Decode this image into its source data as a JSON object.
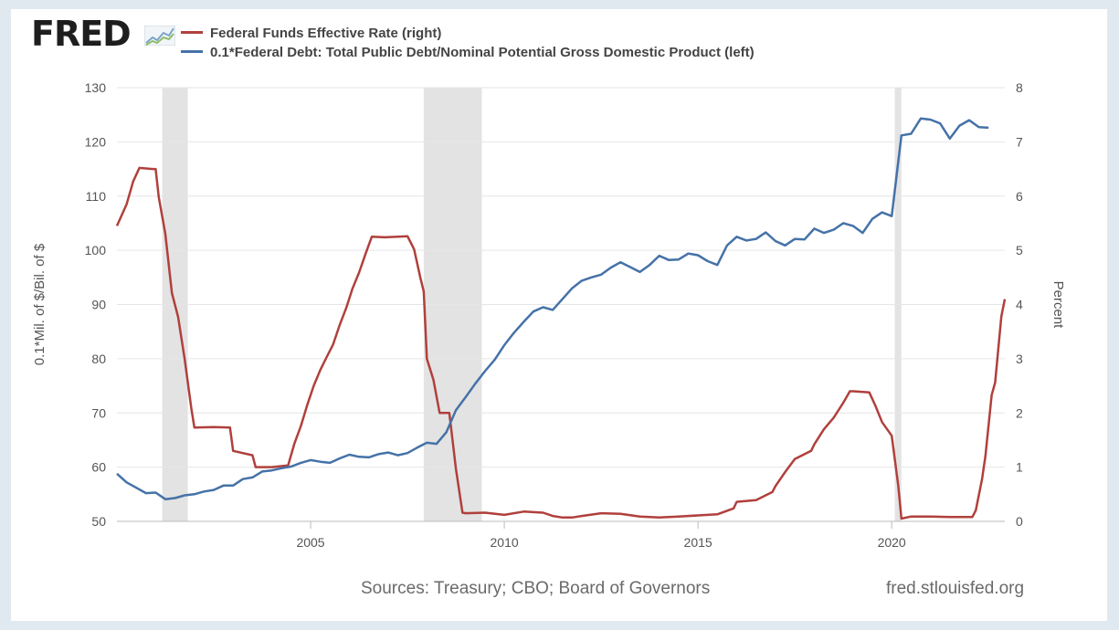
{
  "header": {
    "logo_text": "FRED"
  },
  "footer": {
    "sources": "Sources: Treasury; CBO; Board of Governors",
    "site": "fred.stlouisfed.org"
  },
  "chart_data": {
    "type": "line",
    "left_axis": {
      "label": "0.1*Mil. of $/Bil. of $",
      "ylim": [
        50,
        130
      ],
      "ticks": [
        "50",
        "60",
        "70",
        "80",
        "90",
        "100",
        "110",
        "120",
        "130"
      ]
    },
    "right_axis": {
      "label": "Percent",
      "ylim": [
        0,
        8
      ],
      "ticks": [
        "0",
        "1",
        "2",
        "3",
        "4",
        "5",
        "6",
        "7",
        "8"
      ]
    },
    "x_axis": {
      "range": [
        2000.0,
        2022.92
      ],
      "ticks": [
        {
          "x": 2005,
          "label": "2005"
        },
        {
          "x": 2010,
          "label": "2010"
        },
        {
          "x": 2015,
          "label": "2015"
        },
        {
          "x": 2020,
          "label": "2020"
        }
      ]
    },
    "grid": true,
    "recessions": [
      [
        2001.17,
        2001.83
      ],
      [
        2007.92,
        2009.42
      ],
      [
        2020.08,
        2020.25
      ]
    ],
    "series": [
      {
        "name": "Federal Funds Effective Rate (right)",
        "axis": "right",
        "color": "#b0403c",
        "points": [
          [
            2000.0,
            5.45
          ],
          [
            2000.25,
            5.85
          ],
          [
            2000.42,
            6.27
          ],
          [
            2000.58,
            6.52
          ],
          [
            2000.75,
            6.51
          ],
          [
            2000.92,
            6.5
          ],
          [
            2001.0,
            6.5
          ],
          [
            2001.08,
            5.98
          ],
          [
            2001.25,
            5.3
          ],
          [
            2001.42,
            4.21
          ],
          [
            2001.58,
            3.77
          ],
          [
            2001.75,
            2.99
          ],
          [
            2001.92,
            2.09
          ],
          [
            2002.0,
            1.73
          ],
          [
            2002.5,
            1.74
          ],
          [
            2002.92,
            1.73
          ],
          [
            2003.0,
            1.3
          ],
          [
            2003.5,
            1.22
          ],
          [
            2003.58,
            1.0
          ],
          [
            2004.0,
            1.0
          ],
          [
            2004.42,
            1.03
          ],
          [
            2004.58,
            1.43
          ],
          [
            2004.75,
            1.76
          ],
          [
            2004.92,
            2.16
          ],
          [
            2005.08,
            2.5
          ],
          [
            2005.25,
            2.79
          ],
          [
            2005.42,
            3.04
          ],
          [
            2005.58,
            3.26
          ],
          [
            2005.75,
            3.62
          ],
          [
            2005.92,
            3.94
          ],
          [
            2006.08,
            4.29
          ],
          [
            2006.25,
            4.59
          ],
          [
            2006.42,
            4.94
          ],
          [
            2006.58,
            5.25
          ],
          [
            2006.92,
            5.24
          ],
          [
            2007.25,
            5.25
          ],
          [
            2007.5,
            5.26
          ],
          [
            2007.67,
            5.02
          ],
          [
            2007.83,
            4.5
          ],
          [
            2007.92,
            4.24
          ],
          [
            2008.0,
            3.0
          ],
          [
            2008.17,
            2.61
          ],
          [
            2008.33,
            2.0
          ],
          [
            2008.58,
            2.0
          ],
          [
            2008.75,
            0.97
          ],
          [
            2008.92,
            0.16
          ],
          [
            2009.0,
            0.15
          ],
          [
            2009.5,
            0.16
          ],
          [
            2010.0,
            0.12
          ],
          [
            2010.5,
            0.18
          ],
          [
            2011.0,
            0.16
          ],
          [
            2011.25,
            0.1
          ],
          [
            2011.5,
            0.07
          ],
          [
            2011.75,
            0.07
          ],
          [
            2012.0,
            0.1
          ],
          [
            2012.5,
            0.15
          ],
          [
            2013.0,
            0.14
          ],
          [
            2013.5,
            0.09
          ],
          [
            2014.0,
            0.07
          ],
          [
            2014.5,
            0.09
          ],
          [
            2015.0,
            0.11
          ],
          [
            2015.5,
            0.13
          ],
          [
            2015.92,
            0.24
          ],
          [
            2016.0,
            0.36
          ],
          [
            2016.5,
            0.39
          ],
          [
            2016.92,
            0.54
          ],
          [
            2017.0,
            0.65
          ],
          [
            2017.25,
            0.91
          ],
          [
            2017.5,
            1.15
          ],
          [
            2017.92,
            1.3
          ],
          [
            2018.0,
            1.42
          ],
          [
            2018.25,
            1.7
          ],
          [
            2018.5,
            1.91
          ],
          [
            2018.75,
            2.19
          ],
          [
            2018.92,
            2.4
          ],
          [
            2019.0,
            2.4
          ],
          [
            2019.42,
            2.38
          ],
          [
            2019.58,
            2.13
          ],
          [
            2019.75,
            1.83
          ],
          [
            2020.0,
            1.58
          ],
          [
            2020.17,
            0.65
          ],
          [
            2020.25,
            0.05
          ],
          [
            2020.5,
            0.09
          ],
          [
            2020.75,
            0.09
          ],
          [
            2021.0,
            0.09
          ],
          [
            2021.5,
            0.08
          ],
          [
            2021.92,
            0.08
          ],
          [
            2022.08,
            0.08
          ],
          [
            2022.17,
            0.2
          ],
          [
            2022.33,
            0.77
          ],
          [
            2022.42,
            1.21
          ],
          [
            2022.58,
            2.33
          ],
          [
            2022.67,
            2.56
          ],
          [
            2022.83,
            3.78
          ],
          [
            2022.92,
            4.1
          ]
        ]
      },
      {
        "name": "0.1*Federal Debt: Total Public Debt/Nominal Potential Gross Domestic Product (left)",
        "axis": "left",
        "color": "#4572a7",
        "points": [
          [
            2000.0,
            58.8
          ],
          [
            2000.25,
            57.2
          ],
          [
            2000.5,
            56.2
          ],
          [
            2000.75,
            55.2
          ],
          [
            2001.0,
            55.3
          ],
          [
            2001.25,
            54.1
          ],
          [
            2001.5,
            54.3
          ],
          [
            2001.75,
            54.8
          ],
          [
            2002.0,
            55.0
          ],
          [
            2002.25,
            55.5
          ],
          [
            2002.5,
            55.8
          ],
          [
            2002.75,
            56.6
          ],
          [
            2003.0,
            56.6
          ],
          [
            2003.25,
            57.8
          ],
          [
            2003.5,
            58.1
          ],
          [
            2003.75,
            59.2
          ],
          [
            2004.0,
            59.4
          ],
          [
            2004.25,
            59.8
          ],
          [
            2004.5,
            60.1
          ],
          [
            2004.75,
            60.8
          ],
          [
            2005.0,
            61.3
          ],
          [
            2005.25,
            61.0
          ],
          [
            2005.5,
            60.8
          ],
          [
            2005.75,
            61.6
          ],
          [
            2006.0,
            62.3
          ],
          [
            2006.25,
            61.9
          ],
          [
            2006.5,
            61.8
          ],
          [
            2006.75,
            62.4
          ],
          [
            2007.0,
            62.7
          ],
          [
            2007.25,
            62.2
          ],
          [
            2007.5,
            62.6
          ],
          [
            2007.75,
            63.6
          ],
          [
            2008.0,
            64.5
          ],
          [
            2008.25,
            64.3
          ],
          [
            2008.5,
            66.4
          ],
          [
            2008.75,
            70.5
          ],
          [
            2009.0,
            72.9
          ],
          [
            2009.25,
            75.4
          ],
          [
            2009.5,
            77.7
          ],
          [
            2009.75,
            79.8
          ],
          [
            2010.0,
            82.5
          ],
          [
            2010.25,
            84.8
          ],
          [
            2010.5,
            86.8
          ],
          [
            2010.75,
            88.7
          ],
          [
            2011.0,
            89.5
          ],
          [
            2011.25,
            89.0
          ],
          [
            2011.5,
            91.0
          ],
          [
            2011.75,
            93.0
          ],
          [
            2012.0,
            94.4
          ],
          [
            2012.25,
            95.0
          ],
          [
            2012.5,
            95.5
          ],
          [
            2012.75,
            96.8
          ],
          [
            2013.0,
            97.8
          ],
          [
            2013.25,
            96.9
          ],
          [
            2013.5,
            96.0
          ],
          [
            2013.75,
            97.3
          ],
          [
            2014.0,
            99.0
          ],
          [
            2014.25,
            98.2
          ],
          [
            2014.5,
            98.3
          ],
          [
            2014.75,
            99.4
          ],
          [
            2015.0,
            99.1
          ],
          [
            2015.25,
            98.0
          ],
          [
            2015.5,
            97.3
          ],
          [
            2015.75,
            100.9
          ],
          [
            2016.0,
            102.5
          ],
          [
            2016.25,
            101.8
          ],
          [
            2016.5,
            102.1
          ],
          [
            2016.75,
            103.3
          ],
          [
            2017.0,
            101.7
          ],
          [
            2017.25,
            100.9
          ],
          [
            2017.5,
            102.1
          ],
          [
            2017.75,
            102.0
          ],
          [
            2018.0,
            104.0
          ],
          [
            2018.25,
            103.2
          ],
          [
            2018.5,
            103.8
          ],
          [
            2018.75,
            105.0
          ],
          [
            2019.0,
            104.5
          ],
          [
            2019.25,
            103.2
          ],
          [
            2019.5,
            105.8
          ],
          [
            2019.75,
            107.0
          ],
          [
            2020.0,
            106.3
          ],
          [
            2020.25,
            121.2
          ],
          [
            2020.5,
            121.5
          ],
          [
            2020.75,
            124.3
          ],
          [
            2021.0,
            124.1
          ],
          [
            2021.25,
            123.4
          ],
          [
            2021.5,
            120.6
          ],
          [
            2021.75,
            123.0
          ],
          [
            2022.0,
            124.0
          ],
          [
            2022.25,
            122.7
          ],
          [
            2022.5,
            122.6
          ]
        ]
      }
    ]
  }
}
